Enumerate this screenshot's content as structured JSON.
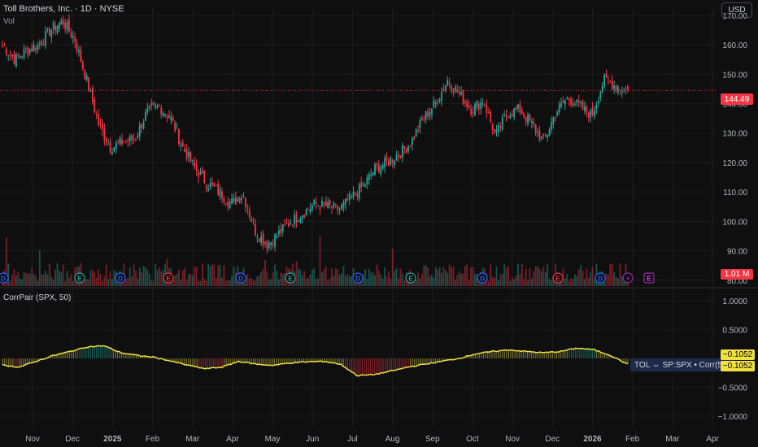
{
  "header": {
    "symbol_title": "Toll Brothers, Inc. · 1D · NYSE",
    "volume_label": "Vol",
    "currency_button": "USD"
  },
  "indicator": {
    "label": "CorrPair (SPX, 50)",
    "tooltip": "TOL ⇔ SP:SPX • Corr(50)",
    "value_badge_1": "−0.1052",
    "value_badge_2": "−0.1052"
  },
  "badges": {
    "last_price": "144.49",
    "last_volume": "1.01 M"
  },
  "colors": {
    "background": "#0f0f0f",
    "up": "#26a69a",
    "down": "#f23645",
    "corr_line": "#f0e040",
    "grid": "#1c1c1c",
    "axis_text": "#b2b5be"
  },
  "chart_data": {
    "type": "candlestick",
    "price_axis_ticks": [
      "170.00",
      "160.00",
      "150.00",
      "140.00",
      "130.00",
      "120.00",
      "110.00",
      "100.00",
      "90.00",
      "80.00"
    ],
    "indicator_axis_ticks": [
      "1.0000",
      "0.5000",
      "−0.5000",
      "−1.0000"
    ],
    "time_axis_ticks": [
      "Nov",
      "Dec",
      "2025",
      "Feb",
      "Mar",
      "Apr",
      "May",
      "Jun",
      "Jul",
      "Aug",
      "Sep",
      "Oct",
      "Nov",
      "Dec",
      "2026",
      "Feb",
      "Mar",
      "Apr"
    ],
    "ylim": [
      78,
      173
    ],
    "corr_ylim": [
      -1.2,
      1.2
    ],
    "price_anchors": [
      {
        "month": "Oct 2024",
        "close": 160
      },
      {
        "month": "mid Oct 2024",
        "close": 155
      },
      {
        "month": "late Oct 2024",
        "close": 158
      },
      {
        "month": "early Nov 2024",
        "close": 160
      },
      {
        "month": "Nov 2024",
        "close": 165
      },
      {
        "month": "late Nov 2024",
        "close": 168
      },
      {
        "month": "Dec 2024",
        "close": 162
      },
      {
        "month": "Dec 2024",
        "close": 148
      },
      {
        "month": "mid Dec 2024",
        "close": 133
      },
      {
        "month": "late Dec 2024",
        "close": 125
      },
      {
        "month": "Jan 2025",
        "close": 127
      },
      {
        "month": "mid Jan 2025",
        "close": 128
      },
      {
        "month": "late Jan 2025",
        "close": 137
      },
      {
        "month": "early Feb 2025",
        "close": 139
      },
      {
        "month": "Feb 2025",
        "close": 135
      },
      {
        "month": "mid Feb 2025",
        "close": 125
      },
      {
        "month": "late Feb 2025",
        "close": 118
      },
      {
        "month": "early Mar 2025",
        "close": 113
      },
      {
        "month": "Mar 2025",
        "close": 110
      },
      {
        "month": "mid Mar 2025",
        "close": 106
      },
      {
        "month": "late Mar 2025",
        "close": 109
      },
      {
        "month": "early Apr 2025",
        "close": 97
      },
      {
        "month": "Apr 2025",
        "close": 92
      },
      {
        "month": "mid Apr 2025",
        "close": 96
      },
      {
        "month": "late Apr 2025",
        "close": 100
      },
      {
        "month": "May 2025",
        "close": 103
      },
      {
        "month": "mid May 2025",
        "close": 106
      },
      {
        "month": "late May 2025",
        "close": 105
      },
      {
        "month": "Jun 2025",
        "close": 104
      },
      {
        "month": "mid Jun 2025",
        "close": 108
      },
      {
        "month": "late Jun 2025",
        "close": 112
      },
      {
        "month": "Jul 2025",
        "close": 118
      },
      {
        "month": "mid Jul 2025",
        "close": 120
      },
      {
        "month": "late Jul 2025",
        "close": 123
      },
      {
        "month": "Aug 2025",
        "close": 127
      },
      {
        "month": "mid Aug 2025",
        "close": 135
      },
      {
        "month": "late Aug 2025",
        "close": 140
      },
      {
        "month": "Sep 2025",
        "close": 148
      },
      {
        "month": "mid Sep 2025",
        "close": 143
      },
      {
        "month": "late Sep 2025",
        "close": 138
      },
      {
        "month": "Oct 2025",
        "close": 141
      },
      {
        "month": "mid Oct 2025",
        "close": 129
      },
      {
        "month": "late Oct 2025",
        "close": 137
      },
      {
        "month": "Nov 2025",
        "close": 138
      },
      {
        "month": "mid Nov 2025",
        "close": 133
      },
      {
        "month": "late Nov 2025",
        "close": 127
      },
      {
        "month": "Dec 2025",
        "close": 137
      },
      {
        "month": "mid Dec 2025",
        "close": 142
      },
      {
        "month": "late Dec 2025",
        "close": 139
      },
      {
        "month": "Jan 2026",
        "close": 136
      },
      {
        "month": "mid Jan 2026",
        "close": 148
      },
      {
        "month": "late Jan 2026",
        "close": 146
      },
      {
        "month": "Feb 2026",
        "close": 144.49
      }
    ],
    "corr_anchors": [
      -0.12,
      -0.15,
      -0.05,
      0.05,
      0.12,
      0.2,
      0.22,
      0.1,
      0.05,
      0.02,
      -0.05,
      -0.12,
      -0.18,
      -0.15,
      -0.05,
      -0.1,
      -0.12,
      -0.08,
      -0.06,
      -0.05,
      -0.1,
      -0.3,
      -0.28,
      -0.22,
      -0.15,
      -0.1,
      -0.05,
      0.0,
      0.08,
      0.12,
      0.15,
      0.12,
      0.1,
      0.12,
      0.18,
      0.15,
      0.05,
      -0.1052
    ]
  }
}
